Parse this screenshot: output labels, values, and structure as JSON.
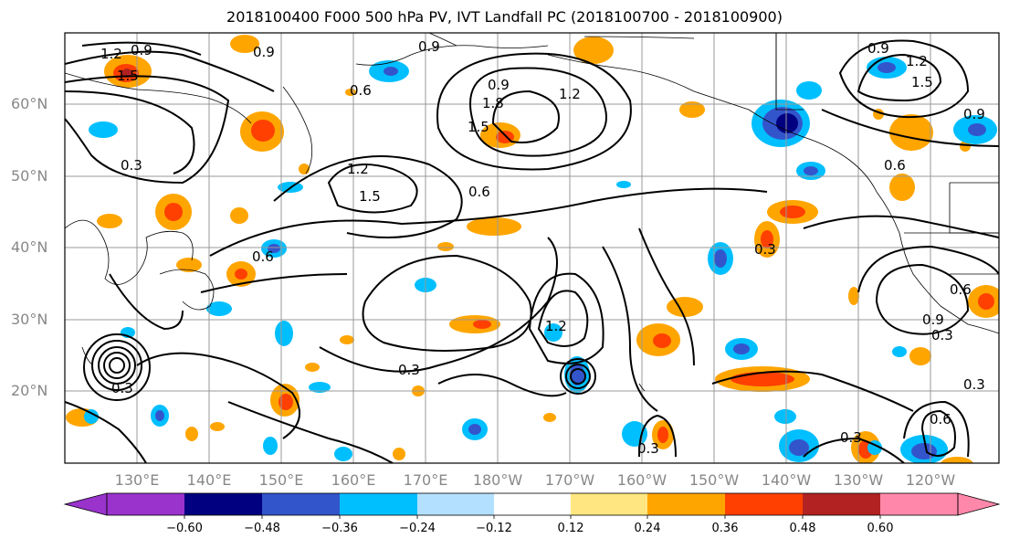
{
  "title": "2018100400 F000 500 hPa PV, IVT Landfall PC (2018100700 - 2018100900)",
  "lat_labels": [
    "60°N",
    "50°N",
    "40°N",
    "30°N",
    "20°N"
  ],
  "lon_labels": [
    "130°E",
    "140°E",
    "150°E",
    "160°E",
    "170°E",
    "180°W",
    "170°W",
    "160°W",
    "150°W",
    "140°W",
    "130°W",
    "120°W"
  ],
  "contour_labels": [
    "1.2",
    "0.9",
    "1.5",
    "0.9",
    "0.6",
    "0.9",
    "1.8",
    "1.2",
    "1.5",
    "0.9",
    "1.5",
    "1.2",
    "0.3",
    "1.2",
    "1.5",
    "0.6",
    "0.6",
    "0.9",
    "0.3",
    "0.6",
    "0.3",
    "1.2",
    "0.3",
    "0.3",
    "0.3",
    "0.6",
    "0.3",
    "0.9",
    "0.3",
    "0.6",
    "0.9"
  ],
  "colorbar": {
    "ticks": [
      "−0.60",
      "−0.48",
      "−0.36",
      "−0.24",
      "−0.12",
      "0.12",
      "0.24",
      "0.36",
      "0.48",
      "0.60"
    ],
    "colors": [
      "#9933cc",
      "#000080",
      "#3355cc",
      "#00bfff",
      "#b3e0ff",
      "#ffffff",
      "#ffe680",
      "#ffa500",
      "#ff4000",
      "#b22222",
      "#ff88aa"
    ]
  },
  "colors": {
    "frame": "#000000",
    "grid": "#999999",
    "land": "#000000",
    "contour": "#000000"
  }
}
